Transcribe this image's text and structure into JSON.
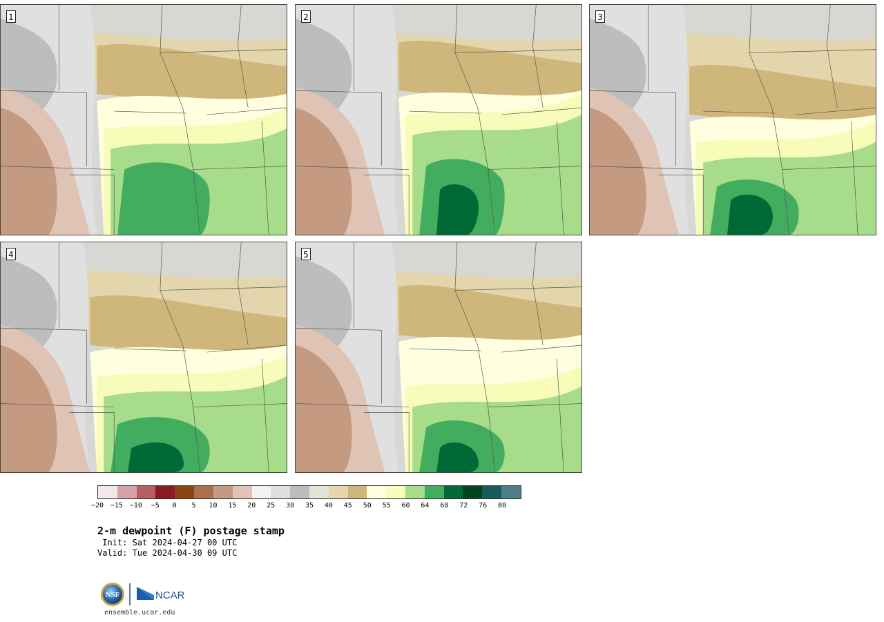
{
  "panels": [
    {
      "number": "1"
    },
    {
      "number": "2"
    },
    {
      "number": "3"
    },
    {
      "number": "4"
    },
    {
      "number": "5"
    }
  ],
  "colorbar": {
    "colors": [
      "#f5e7e9",
      "#d6a3a8",
      "#b55f64",
      "#8c1a22",
      "#8b4513",
      "#a8714a",
      "#c49a80",
      "#dfc3b4",
      "#f2f2f2",
      "#e0e0e0",
      "#bdbdbd",
      "#e2e2d6",
      "#e3d6ad",
      "#cfb77c",
      "#ffffe0",
      "#f7fcb9",
      "#a6dc8a",
      "#42ad5e",
      "#006a36",
      "#00441e",
      "#1a5a5a",
      "#4f7f86"
    ],
    "labels": [
      "−20",
      "−15",
      "−10",
      "−5",
      "0",
      "5",
      "10",
      "15",
      "20",
      "25",
      "30",
      "35",
      "40",
      "45",
      "50",
      "55",
      "60",
      "64",
      "68",
      "72",
      "76",
      "80"
    ]
  },
  "title": "2-m dewpoint (F) postage stamp",
  "init": " Init: Sat 2024-04-27 00 UTC",
  "valid": "Valid: Tue 2024-04-30 09 UTC",
  "logo": {
    "nsf": "NSF",
    "ncar": "NCAR"
  },
  "site": "ensemble.ucar.edu"
}
